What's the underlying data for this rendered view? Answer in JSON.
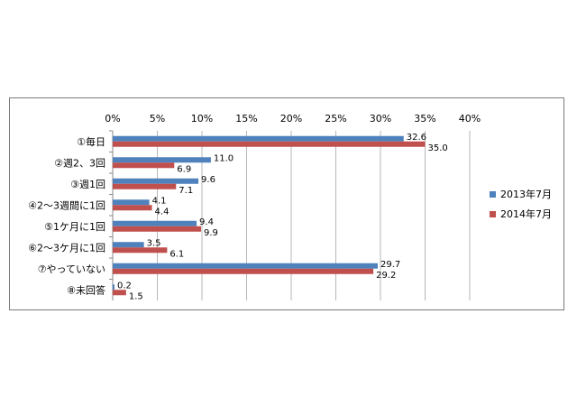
{
  "chart_data": {
    "type": "bar",
    "orientation": "horizontal",
    "categories": [
      "①毎日",
      "②週2、3回",
      "③週1回",
      "④2〜3週間に1回",
      "⑤1ケ月に1回",
      "⑥2〜3ケ月に1回",
      "⑦やっていない",
      "⑧未回答"
    ],
    "series": [
      {
        "name": "2013年7月",
        "color": "#4f81bd",
        "values": [
          32.6,
          11.0,
          9.6,
          4.1,
          9.4,
          3.5,
          29.7,
          0.2
        ],
        "labels": [
          "32.6",
          "11.0",
          "9.6",
          "4.1",
          "9.4",
          "3.5",
          "29.7",
          "0.2"
        ]
      },
      {
        "name": "2014年7月",
        "color": "#c0504d",
        "values": [
          35.0,
          6.9,
          7.1,
          4.4,
          9.9,
          6.1,
          29.2,
          1.5
        ],
        "labels": [
          "35.0",
          "6.9",
          "7.1",
          "4.4",
          "9.9",
          "6.1",
          "29.2",
          "1.5"
        ]
      }
    ],
    "xlim": [
      0,
      40
    ],
    "ticks": [
      "0%",
      "5%",
      "10%",
      "15%",
      "20%",
      "25%",
      "30%",
      "35%",
      "40%"
    ],
    "tick_values": [
      0,
      5,
      10,
      15,
      20,
      25,
      30,
      35,
      40
    ],
    "grid": true,
    "legend": "right",
    "title": "",
    "xlabel": "",
    "ylabel": ""
  }
}
